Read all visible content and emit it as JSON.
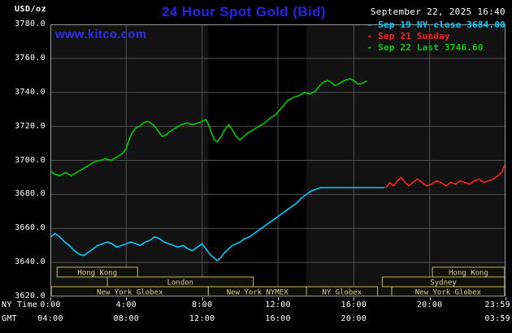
{
  "header": {
    "unit_label": "USD/oz",
    "title": "24 Hour Spot Gold (Bid)",
    "datetime": "September 22, 2025 16:40",
    "watermark": "www.kitco.com"
  },
  "legend": [
    {
      "label": "Sep 19 NY close 3684.00",
      "color": "#00ccff"
    },
    {
      "label": "Sep 21 Sunday",
      "color": "#ff2222"
    },
    {
      "label": "Sep 22 Last 3746.60",
      "color": "#00cc00"
    }
  ],
  "colors": {
    "background": "#000000",
    "plot_bg": "#121212",
    "band": "#000000",
    "grid": "#4f4f4f",
    "frame": "#999999",
    "session_border": "#bfb463",
    "session_text": "#d9ce8a",
    "session_fill": "#10100a",
    "title_blue": "#2424e8",
    "tick": "#cccccc"
  },
  "chart_data": {
    "type": "line",
    "title": "24 Hour Spot Gold (Bid)",
    "y_unit": "USD/oz",
    "x_unit": "hours, NY time",
    "xlim": [
      0,
      24
    ],
    "ylim": [
      3620,
      3780
    ],
    "grid": true,
    "x_label_ny": "NY Time",
    "x_label_gmt": "GMT",
    "y_ticks": [
      {
        "v": 3780,
        "label": "3780.0"
      },
      {
        "v": 3760,
        "label": "3760.0"
      },
      {
        "v": 3740,
        "label": "3740.0"
      },
      {
        "v": 3720,
        "label": "3720.0"
      },
      {
        "v": 3700,
        "label": "3700.0"
      },
      {
        "v": 3680,
        "label": "3680.0"
      },
      {
        "v": 3660,
        "label": "3660.0"
      },
      {
        "v": 3640,
        "label": "3640.0"
      },
      {
        "v": 3620,
        "label": "3620.0"
      }
    ],
    "x_grid": [
      4,
      8,
      12,
      16,
      20
    ],
    "x_ticks": [
      {
        "t": 0,
        "ny": "0:00",
        "gmt": "04:00"
      },
      {
        "t": 4,
        "ny": "4:00",
        "gmt": "08:00"
      },
      {
        "t": 8,
        "ny": "8:00",
        "gmt": "12:00"
      },
      {
        "t": 12,
        "ny": "12:00",
        "gmt": "16:00"
      },
      {
        "t": 16,
        "ny": "16:00",
        "gmt": "20:00"
      },
      {
        "t": 20,
        "ny": "20:00"
      },
      {
        "t": 23.983,
        "ny": "23:59",
        "gmt": "03:59",
        "align": "right"
      }
    ],
    "nymex_band": [
      8.33,
      13.5
    ],
    "sessions": [
      {
        "row": 0,
        "start": 0.35,
        "end": 4.6,
        "label": "Hong Kong"
      },
      {
        "row": 0,
        "start": 20.15,
        "end": 23.95,
        "label": "Hong Kong"
      },
      {
        "row": 1,
        "start": 3.0,
        "end": 10.7,
        "label": "London"
      },
      {
        "row": 1,
        "start": 17.5,
        "end": 23.95,
        "label": "Sydney"
      },
      {
        "row": 2,
        "start": 0.05,
        "end": 8.33,
        "label": "New York Globex"
      },
      {
        "row": 2,
        "start": 8.33,
        "end": 13.5,
        "label": "New York NYMEX"
      },
      {
        "row": 2,
        "start": 13.5,
        "end": 17.25,
        "label": "NY Globex"
      },
      {
        "row": 2,
        "start": 18.0,
        "end": 23.95,
        "label": "New York Globex"
      }
    ],
    "series": [
      {
        "name": "Sep 19 NY close",
        "color": "#00ccff",
        "points": [
          [
            0.0,
            3655
          ],
          [
            0.25,
            3657
          ],
          [
            0.5,
            3655
          ],
          [
            0.75,
            3652
          ],
          [
            1.0,
            3650
          ],
          [
            1.25,
            3647
          ],
          [
            1.5,
            3645
          ],
          [
            1.75,
            3644
          ],
          [
            2.0,
            3646
          ],
          [
            2.25,
            3648
          ],
          [
            2.5,
            3650
          ],
          [
            2.75,
            3651
          ],
          [
            3.0,
            3652
          ],
          [
            3.25,
            3651
          ],
          [
            3.5,
            3649
          ],
          [
            3.75,
            3650
          ],
          [
            4.0,
            3651
          ],
          [
            4.25,
            3652
          ],
          [
            4.5,
            3651
          ],
          [
            4.75,
            3650
          ],
          [
            5.0,
            3652
          ],
          [
            5.25,
            3653
          ],
          [
            5.5,
            3655
          ],
          [
            5.75,
            3654
          ],
          [
            6.0,
            3652
          ],
          [
            6.25,
            3651
          ],
          [
            6.5,
            3650
          ],
          [
            6.75,
            3649
          ],
          [
            7.0,
            3650
          ],
          [
            7.25,
            3648
          ],
          [
            7.5,
            3647
          ],
          [
            7.75,
            3649
          ],
          [
            8.0,
            3651
          ],
          [
            8.2,
            3648
          ],
          [
            8.4,
            3645
          ],
          [
            8.6,
            3643
          ],
          [
            8.8,
            3641
          ],
          [
            9.0,
            3643
          ],
          [
            9.2,
            3646
          ],
          [
            9.4,
            3648
          ],
          [
            9.6,
            3650
          ],
          [
            9.8,
            3651
          ],
          [
            10.0,
            3652
          ],
          [
            10.25,
            3654
          ],
          [
            10.5,
            3655
          ],
          [
            10.75,
            3657
          ],
          [
            11.0,
            3659
          ],
          [
            11.25,
            3661
          ],
          [
            11.5,
            3663
          ],
          [
            11.75,
            3665
          ],
          [
            12.0,
            3667
          ],
          [
            12.25,
            3669
          ],
          [
            12.5,
            3671
          ],
          [
            12.75,
            3673
          ],
          [
            13.0,
            3675
          ],
          [
            13.25,
            3678
          ],
          [
            13.5,
            3680
          ],
          [
            13.75,
            3682
          ],
          [
            14.0,
            3683
          ],
          [
            14.25,
            3684
          ],
          [
            14.75,
            3684
          ],
          [
            15.25,
            3684
          ],
          [
            15.75,
            3684
          ],
          [
            16.25,
            3684
          ],
          [
            16.75,
            3684
          ],
          [
            17.25,
            3684
          ],
          [
            17.6,
            3684
          ]
        ]
      },
      {
        "name": "Sep 21 Sunday",
        "color": "#ff2222",
        "points": [
          [
            17.7,
            3684
          ],
          [
            17.9,
            3687
          ],
          [
            18.1,
            3685
          ],
          [
            18.3,
            3688
          ],
          [
            18.5,
            3690
          ],
          [
            18.7,
            3687
          ],
          [
            18.9,
            3685
          ],
          [
            19.1,
            3687
          ],
          [
            19.35,
            3689
          ],
          [
            19.6,
            3687
          ],
          [
            19.85,
            3685
          ],
          [
            20.1,
            3686
          ],
          [
            20.35,
            3688
          ],
          [
            20.6,
            3687
          ],
          [
            20.85,
            3685
          ],
          [
            21.1,
            3687
          ],
          [
            21.35,
            3686
          ],
          [
            21.6,
            3688
          ],
          [
            21.85,
            3687
          ],
          [
            22.1,
            3686
          ],
          [
            22.35,
            3688
          ],
          [
            22.6,
            3689
          ],
          [
            22.85,
            3687
          ],
          [
            23.1,
            3688
          ],
          [
            23.35,
            3689
          ],
          [
            23.6,
            3691
          ],
          [
            23.8,
            3693
          ],
          [
            23.95,
            3697
          ]
        ]
      },
      {
        "name": "Sep 22 Last",
        "color": "#00cc00",
        "points": [
          [
            0.0,
            3694
          ],
          [
            0.2,
            3692
          ],
          [
            0.5,
            3691
          ],
          [
            0.8,
            3693
          ],
          [
            1.1,
            3691
          ],
          [
            1.4,
            3693
          ],
          [
            1.7,
            3695
          ],
          [
            2.0,
            3697
          ],
          [
            2.3,
            3699
          ],
          [
            2.6,
            3700
          ],
          [
            2.9,
            3701
          ],
          [
            3.2,
            3700
          ],
          [
            3.5,
            3702
          ],
          [
            3.8,
            3704
          ],
          [
            4.0,
            3707
          ],
          [
            4.15,
            3712
          ],
          [
            4.3,
            3716
          ],
          [
            4.5,
            3719
          ],
          [
            4.7,
            3720
          ],
          [
            4.9,
            3722
          ],
          [
            5.1,
            3723
          ],
          [
            5.3,
            3722
          ],
          [
            5.5,
            3720
          ],
          [
            5.7,
            3717
          ],
          [
            5.9,
            3714
          ],
          [
            6.1,
            3715
          ],
          [
            6.3,
            3717
          ],
          [
            6.6,
            3719
          ],
          [
            6.9,
            3721
          ],
          [
            7.2,
            3722
          ],
          [
            7.5,
            3721
          ],
          [
            7.8,
            3722
          ],
          [
            8.0,
            3723
          ],
          [
            8.2,
            3724
          ],
          [
            8.35,
            3721
          ],
          [
            8.5,
            3716
          ],
          [
            8.65,
            3712
          ],
          [
            8.8,
            3711
          ],
          [
            9.0,
            3714
          ],
          [
            9.2,
            3718
          ],
          [
            9.4,
            3721
          ],
          [
            9.6,
            3718
          ],
          [
            9.8,
            3714
          ],
          [
            10.0,
            3712
          ],
          [
            10.2,
            3714
          ],
          [
            10.4,
            3716
          ],
          [
            10.7,
            3718
          ],
          [
            11.0,
            3720
          ],
          [
            11.3,
            3722
          ],
          [
            11.6,
            3725
          ],
          [
            11.9,
            3727
          ],
          [
            12.2,
            3731
          ],
          [
            12.5,
            3735
          ],
          [
            12.8,
            3737
          ],
          [
            13.1,
            3738
          ],
          [
            13.4,
            3740
          ],
          [
            13.7,
            3739
          ],
          [
            14.0,
            3741
          ],
          [
            14.2,
            3744
          ],
          [
            14.4,
            3746
          ],
          [
            14.6,
            3747
          ],
          [
            14.8,
            3746
          ],
          [
            15.0,
            3744
          ],
          [
            15.2,
            3745
          ],
          [
            15.5,
            3747
          ],
          [
            15.8,
            3748
          ],
          [
            16.0,
            3747
          ],
          [
            16.2,
            3745
          ],
          [
            16.4,
            3745
          ],
          [
            16.55,
            3746
          ],
          [
            16.67,
            3746.6
          ]
        ]
      }
    ]
  }
}
